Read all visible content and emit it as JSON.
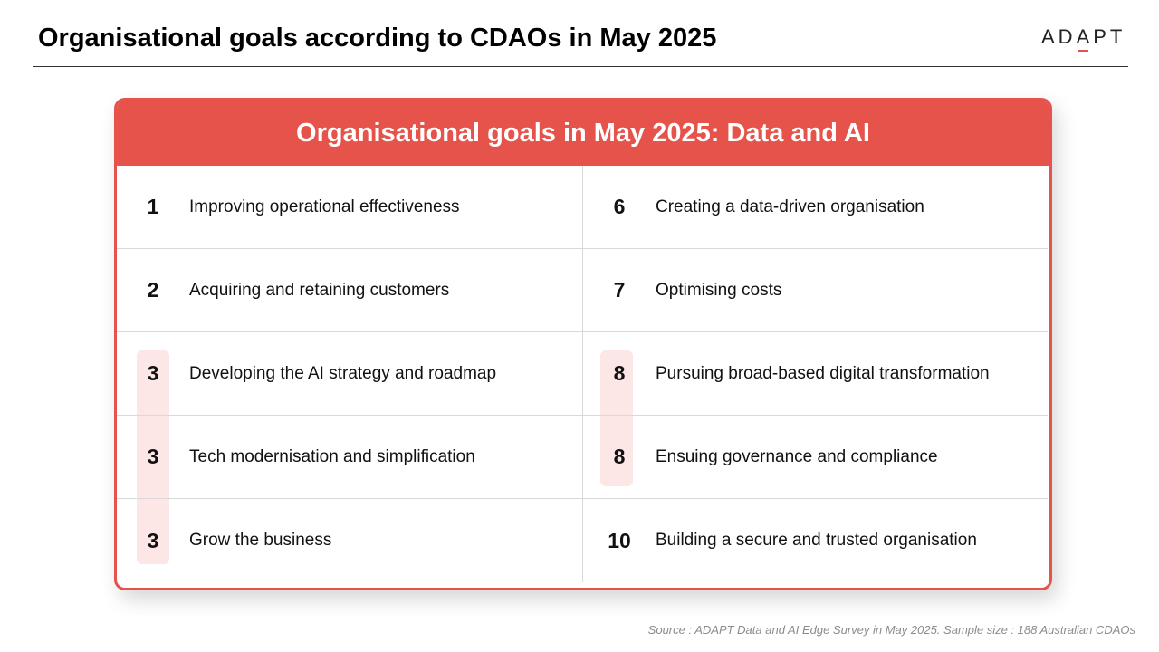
{
  "header": {
    "title": "Organisational goals according to CDAOs in May 2025",
    "logo": "ADAPT"
  },
  "card": {
    "title": "Organisational goals in May 2025: Data and AI",
    "items": [
      {
        "rank": "1",
        "goal": "Improving operational effectiveness",
        "highlight": false
      },
      {
        "rank": "2",
        "goal": "Acquiring and retaining customers",
        "highlight": false
      },
      {
        "rank": "3",
        "goal": "Developing the AI strategy and roadmap",
        "highlight": true
      },
      {
        "rank": "3",
        "goal": "Tech modernisation and simplification",
        "highlight": true
      },
      {
        "rank": "3",
        "goal": "Grow the business",
        "highlight": true
      },
      {
        "rank": "6",
        "goal": "Creating a data-driven organisation",
        "highlight": false
      },
      {
        "rank": "7",
        "goal": "Optimising costs",
        "highlight": false
      },
      {
        "rank": "8",
        "goal": "Pursuing broad-based digital transformation",
        "highlight": true
      },
      {
        "rank": "8",
        "goal": "Ensuing governance and compliance",
        "highlight": true
      },
      {
        "rank": "10",
        "goal": "Building a secure and trusted organisation",
        "highlight": false
      }
    ]
  },
  "footer": {
    "source": "Source : ADAPT Data and AI Edge Survey in May 2025. Sample size : 188 Australian CDAOs"
  },
  "colors": {
    "accent": "#e5534b",
    "highlight": "#fce6e6"
  }
}
